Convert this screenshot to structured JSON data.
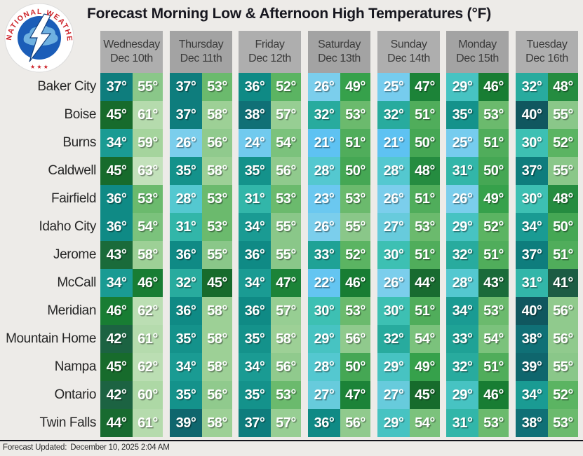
{
  "title": "Forecast Morning Low & Afternoon High Temperatures (°F)",
  "logo": {
    "ring_text": "NATIONAL WEATHER SERVICE",
    "stars": "★ ★ ★",
    "ring_color": "#cc2128",
    "globe_color": "#1b5db8",
    "cloud_color": "#7ec0e8"
  },
  "footer": {
    "label": "Forecast Updated:",
    "value": "December 10, 2025 2:04 AM"
  },
  "header_style": {
    "bg_light": "#aeaeae",
    "bg_dark": "#a3a3a3",
    "text_color": "#3b3b3b"
  },
  "chart_data": {
    "type": "heatmap",
    "title": "Forecast Morning Low & Afternoon High Temperatures (°F)",
    "unit": "°F",
    "cell_format": "morning low (left) / afternoon high (right)",
    "columns": [
      {
        "day": "Wednesday",
        "date": "Dec 10th"
      },
      {
        "day": "Thursday",
        "date": "Dec 11th"
      },
      {
        "day": "Friday",
        "date": "Dec 12th"
      },
      {
        "day": "Saturday",
        "date": "Dec 13th"
      },
      {
        "day": "Sunday",
        "date": "Dec 14th"
      },
      {
        "day": "Monday",
        "date": "Dec 15th"
      },
      {
        "day": "Tuesday",
        "date": "Dec 16th"
      }
    ],
    "rows": [
      {
        "city": "Baker City",
        "low_high": [
          [
            37,
            55
          ],
          [
            37,
            53
          ],
          [
            36,
            52
          ],
          [
            26,
            49
          ],
          [
            25,
            47
          ],
          [
            29,
            46
          ],
          [
            32,
            48
          ]
        ]
      },
      {
        "city": "Boise",
        "low_high": [
          [
            45,
            61
          ],
          [
            37,
            58
          ],
          [
            38,
            57
          ],
          [
            32,
            53
          ],
          [
            32,
            51
          ],
          [
            35,
            53
          ],
          [
            40,
            55
          ]
        ]
      },
      {
        "city": "Burns",
        "low_high": [
          [
            34,
            59
          ],
          [
            26,
            56
          ],
          [
            24,
            54
          ],
          [
            21,
            51
          ],
          [
            21,
            50
          ],
          [
            25,
            51
          ],
          [
            30,
            52
          ]
        ]
      },
      {
        "city": "Caldwell",
        "low_high": [
          [
            45,
            63
          ],
          [
            35,
            58
          ],
          [
            35,
            56
          ],
          [
            28,
            50
          ],
          [
            28,
            48
          ],
          [
            31,
            50
          ],
          [
            37,
            55
          ]
        ]
      },
      {
        "city": "Fairfield",
        "low_high": [
          [
            36,
            53
          ],
          [
            28,
            53
          ],
          [
            31,
            53
          ],
          [
            23,
            53
          ],
          [
            26,
            51
          ],
          [
            26,
            49
          ],
          [
            30,
            48
          ]
        ]
      },
      {
        "city": "Idaho City",
        "low_high": [
          [
            36,
            54
          ],
          [
            31,
            53
          ],
          [
            34,
            55
          ],
          [
            26,
            55
          ],
          [
            27,
            53
          ],
          [
            29,
            52
          ],
          [
            34,
            50
          ]
        ]
      },
      {
        "city": "Jerome",
        "low_high": [
          [
            43,
            58
          ],
          [
            36,
            55
          ],
          [
            36,
            55
          ],
          [
            33,
            52
          ],
          [
            30,
            51
          ],
          [
            32,
            51
          ],
          [
            37,
            51
          ]
        ]
      },
      {
        "city": "McCall",
        "low_high": [
          [
            34,
            46
          ],
          [
            32,
            45
          ],
          [
            34,
            47
          ],
          [
            22,
            46
          ],
          [
            26,
            44
          ],
          [
            28,
            43
          ],
          [
            31,
            41
          ]
        ]
      },
      {
        "city": "Meridian",
        "low_high": [
          [
            46,
            62
          ],
          [
            36,
            58
          ],
          [
            36,
            57
          ],
          [
            30,
            53
          ],
          [
            30,
            51
          ],
          [
            34,
            53
          ],
          [
            40,
            56
          ]
        ]
      },
      {
        "city": "Mountain Home",
        "low_high": [
          [
            42,
            61
          ],
          [
            35,
            58
          ],
          [
            35,
            58
          ],
          [
            29,
            56
          ],
          [
            32,
            54
          ],
          [
            33,
            54
          ],
          [
            38,
            56
          ]
        ]
      },
      {
        "city": "Nampa",
        "low_high": [
          [
            45,
            62
          ],
          [
            34,
            58
          ],
          [
            34,
            56
          ],
          [
            28,
            50
          ],
          [
            29,
            49
          ],
          [
            32,
            51
          ],
          [
            39,
            55
          ]
        ]
      },
      {
        "city": "Ontario",
        "low_high": [
          [
            42,
            60
          ],
          [
            35,
            56
          ],
          [
            35,
            53
          ],
          [
            27,
            47
          ],
          [
            27,
            45
          ],
          [
            29,
            46
          ],
          [
            34,
            52
          ]
        ]
      },
      {
        "city": "Twin Falls",
        "low_high": [
          [
            44,
            61
          ],
          [
            39,
            58
          ],
          [
            37,
            57
          ],
          [
            36,
            56
          ],
          [
            29,
            54
          ],
          [
            31,
            53
          ],
          [
            38,
            53
          ]
        ]
      }
    ],
    "color_scale": {
      "21": "#5ec2f2",
      "22": "#64c5f1",
      "23": "#6bc8f0",
      "24": "#71caee",
      "25": "#76ccee",
      "26": "#7bceec",
      "27": "#67cbdc",
      "28": "#54c8d0",
      "29": "#47c3c2",
      "30": "#3dc0b3",
      "31": "#32b6a9",
      "32": "#28ab9e",
      "33": "#1fa296",
      "34": "#1a9b93",
      "35": "#14928b",
      "36": "#0f8a85",
      "37": "#0e7d7d",
      "38": "#107076",
      "39": "#0f666d",
      "40": "#10575f",
      "41": "#1c5c44",
      "42": "#1c6342",
      "43": "#1a6b3a",
      "44": "#186b30",
      "45": "#176b2c",
      "46": "#187d33",
      "47": "#1c8338",
      "48": "#258c40",
      "49": "#36a14b",
      "50": "#45a754",
      "51": "#50ad5b",
      "52": "#5bb462",
      "53": "#6bba6d",
      "54": "#7bc27c",
      "55": "#8ac789",
      "56": "#90ca8d",
      "57": "#97ce93",
      "58": "#9dd096",
      "59": "#a5d49d",
      "60": "#add8a5",
      "61": "#b5dbad",
      "62": "#bbdeb3",
      "63": "#c3e1bb"
    }
  }
}
